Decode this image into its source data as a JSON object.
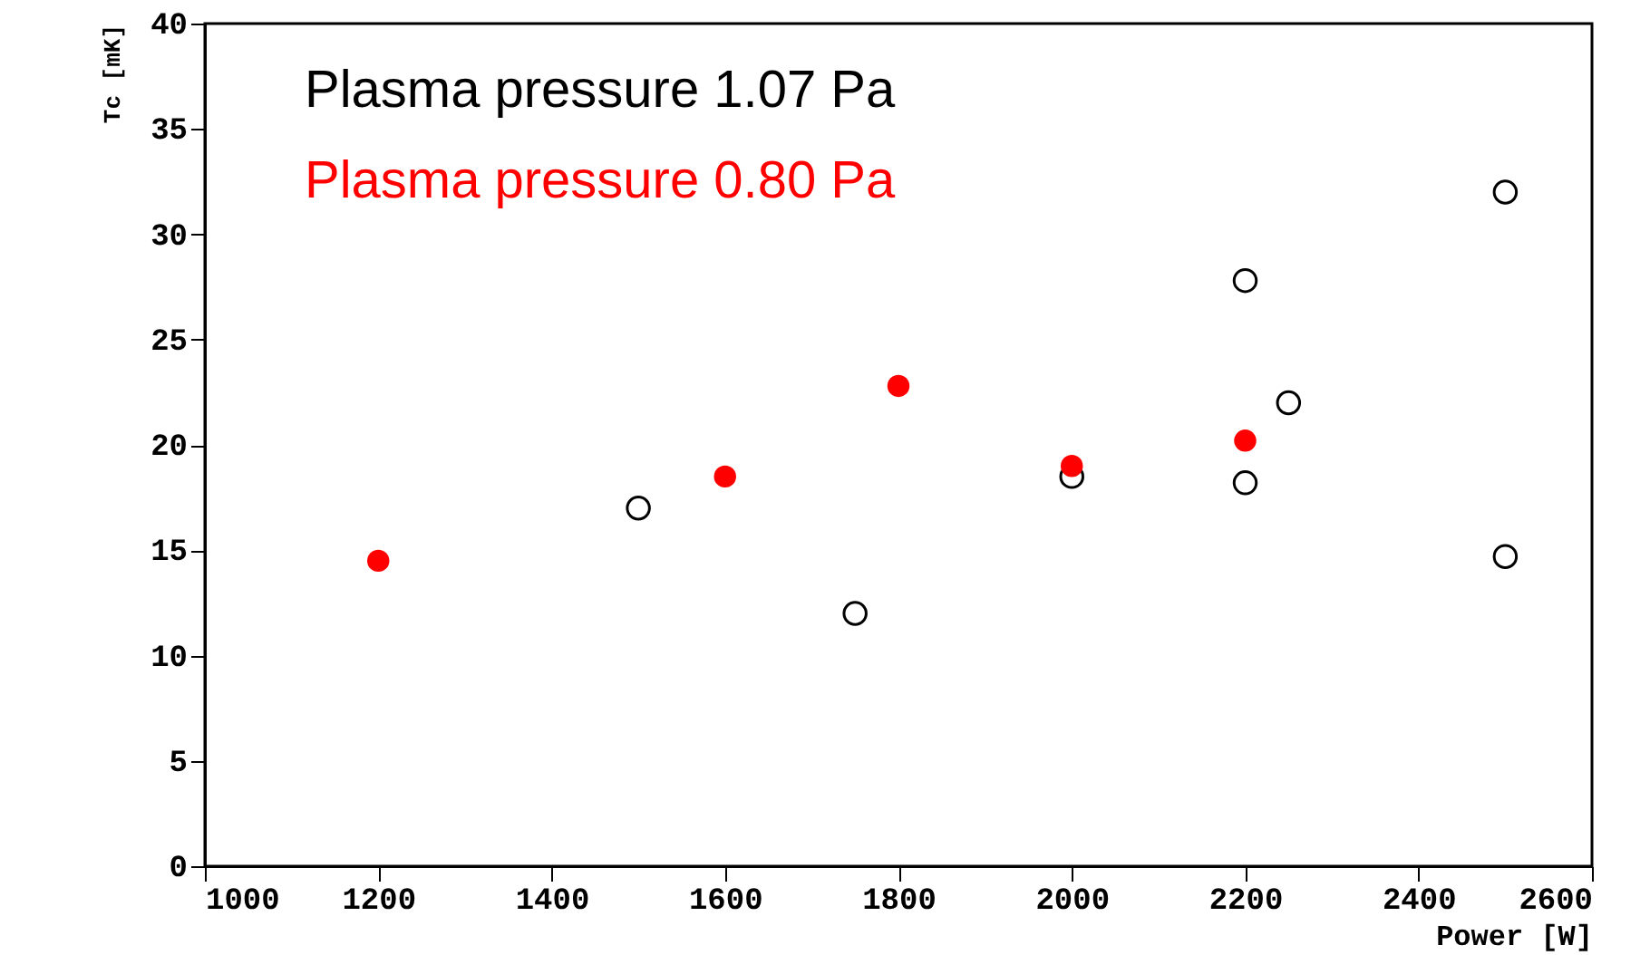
{
  "chart_data": {
    "type": "scatter",
    "xlabel": "Power [W]",
    "ylabel": "Tc [mK]",
    "xlim": [
      1000,
      2600
    ],
    "xticks": [
      {
        "value": 1000,
        "label": "1000"
      },
      {
        "value": 1200,
        "label": "1200"
      },
      {
        "value": 1400,
        "label": "1400"
      },
      {
        "value": 1600,
        "label": "1600"
      },
      {
        "value": 1800,
        "label": "1800"
      },
      {
        "value": 2000,
        "label": "2000"
      },
      {
        "value": 2200,
        "label": "2200"
      },
      {
        "value": 2400,
        "label": "2400"
      },
      {
        "value": 2600,
        "label": "2600"
      }
    ],
    "ylim": [
      0,
      40
    ],
    "yticks": [
      0,
      5,
      10,
      15,
      20,
      25,
      30,
      35,
      40
    ],
    "grid": false,
    "legend": "top left",
    "marker": "circle",
    "series": [
      {
        "name": "Plasma pressure 1.07 Pa",
        "color": "#000000",
        "x": [
          1500,
          1750,
          2000,
          2200,
          2200,
          2250,
          2500,
          2500
        ],
        "values": [
          17.0,
          12.0,
          18.5,
          27.8,
          18.2,
          22.0,
          32.0,
          14.7
        ]
      },
      {
        "name": "Plasma pressure 0.80 Pa",
        "color": "#ff0000",
        "x": [
          1200,
          1600,
          1800,
          2000,
          2200
        ],
        "values": [
          14.5,
          18.5,
          22.8,
          19.0,
          20.2
        ]
      }
    ]
  }
}
